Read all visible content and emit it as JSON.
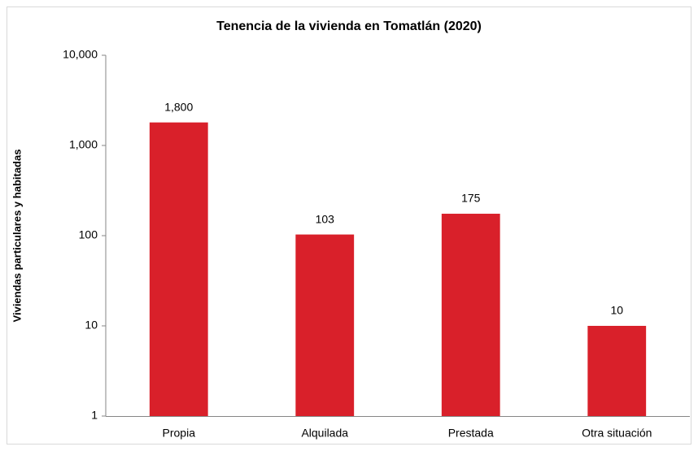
{
  "chart_data": {
    "type": "bar",
    "title": "Tenencia de la vivienda en Tomatlán (2020)",
    "y_label": "Viviendas particulares y habitadas",
    "categories": [
      "Propia",
      "Alquilada",
      "Prestada",
      "Otra situación"
    ],
    "values": [
      1800,
      103,
      175,
      10
    ],
    "value_labels": [
      "1,800",
      "103",
      "175",
      "10"
    ],
    "color": "#d9202a",
    "log_scale": true,
    "ylim": [
      1,
      10000
    ],
    "yticks": [
      1,
      10,
      100,
      {
        "value": 1000,
        "label": "1,000"
      },
      {
        "value": 10000,
        "label": "10,000"
      }
    ],
    "grid": false
  }
}
